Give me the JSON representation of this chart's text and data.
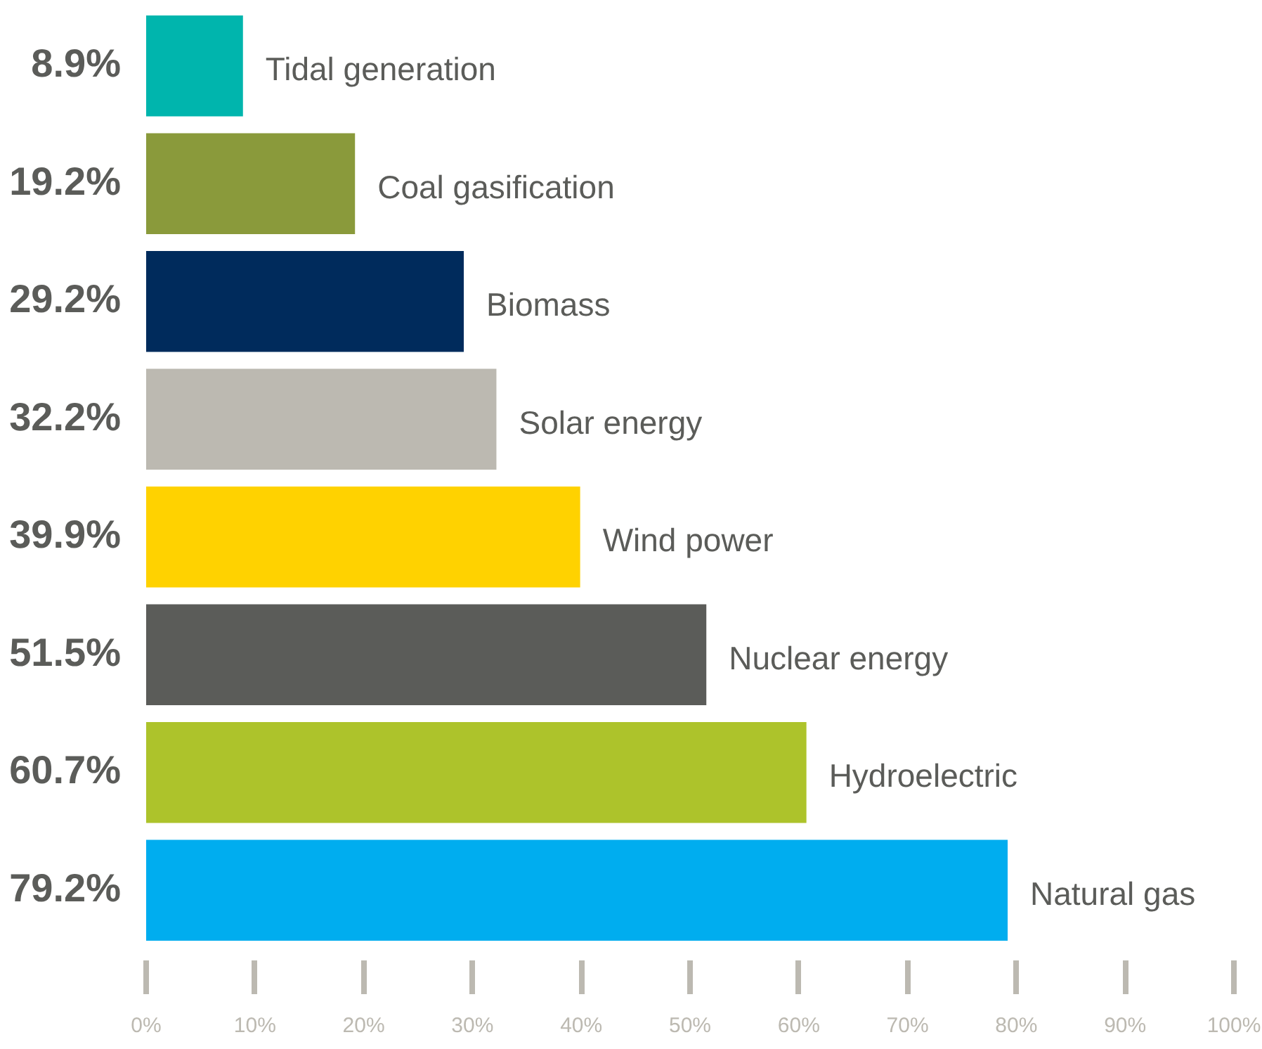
{
  "chart_data": {
    "type": "bar",
    "orientation": "horizontal",
    "categories": [
      "Tidal generation",
      "Coal gasification",
      "Biomass",
      "Solar energy",
      "Wind power",
      "Nuclear energy",
      "Hydroelectric",
      "Natural gas"
    ],
    "values": [
      8.9,
      19.2,
      29.2,
      32.2,
      39.9,
      51.5,
      60.7,
      79.2
    ],
    "colors": [
      "#00b5ad",
      "#8a9a3b",
      "#002b5c",
      "#bcb9b1",
      "#ffd200",
      "#5b5c59",
      "#adc32b",
      "#00adef"
    ],
    "value_labels": [
      "8.9%",
      "19.2%",
      "29.2%",
      "32.2%",
      "39.9%",
      "51.5%",
      "60.7%",
      "79.2%"
    ],
    "xlim": [
      0,
      100
    ],
    "xticks": [
      {
        "value": 0,
        "label": "0%"
      },
      {
        "value": 10,
        "label": "10%"
      },
      {
        "value": 20,
        "label": "20%"
      },
      {
        "value": 30,
        "label": "30%"
      },
      {
        "value": 40,
        "label": "40%"
      },
      {
        "value": 50,
        "label": "50%"
      },
      {
        "value": 60,
        "label": "60%"
      },
      {
        "value": 70,
        "label": "70%"
      },
      {
        "value": 80,
        "label": "80%"
      },
      {
        "value": 90,
        "label": "90%"
      },
      {
        "value": 100,
        "label": "100%"
      }
    ],
    "grid": false
  }
}
